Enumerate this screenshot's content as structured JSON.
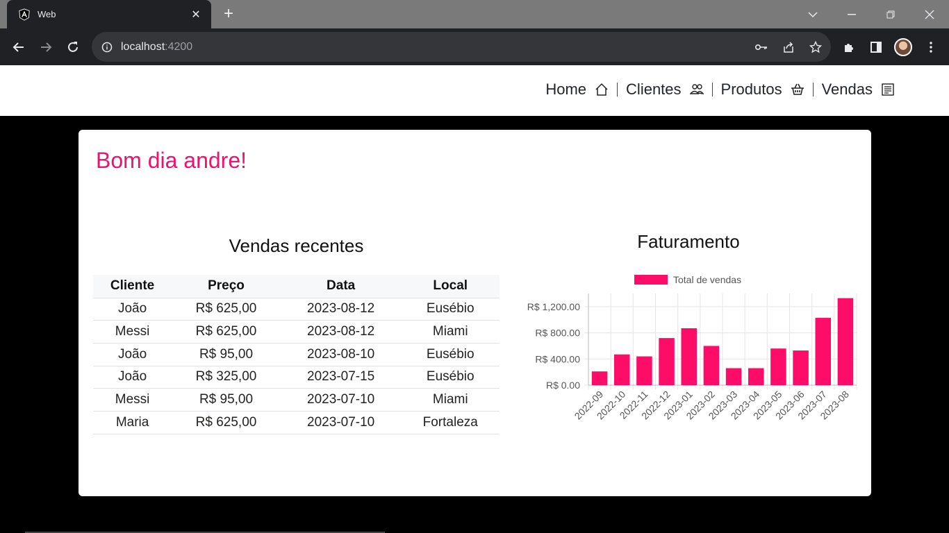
{
  "browser": {
    "tab_title": "Web",
    "url_host": "localhost",
    "url_port": ":4200"
  },
  "nav": {
    "home": "Home",
    "clientes": "Clientes",
    "produtos": "Produtos",
    "vendas": "Vendas"
  },
  "greeting": "Bom dia andre!",
  "recent": {
    "title": "Vendas recentes",
    "columns": [
      "Cliente",
      "Preço",
      "Data",
      "Local"
    ],
    "rows": [
      [
        "João",
        "R$ 625,00",
        "2023-08-12",
        "Eusébio"
      ],
      [
        "Messi",
        "R$ 625,00",
        "2023-08-12",
        "Miami"
      ],
      [
        "João",
        "R$ 95,00",
        "2023-08-10",
        "Eusébio"
      ],
      [
        "João",
        "R$ 325,00",
        "2023-07-15",
        "Eusébio"
      ],
      [
        "Messi",
        "R$ 95,00",
        "2023-07-10",
        "Miami"
      ],
      [
        "Maria",
        "R$ 625,00",
        "2023-07-10",
        "Fortaleza"
      ]
    ]
  },
  "chart_data": {
    "type": "bar",
    "title": "Faturamento",
    "legend": "Total de vendas",
    "color": "#fd0d68",
    "categories": [
      "2022-09",
      "2022-10",
      "2022-11",
      "2022-12",
      "2023-01",
      "2023-02",
      "2023-03",
      "2023-04",
      "2023-05",
      "2023-06",
      "2023-07",
      "2023-08"
    ],
    "values": [
      210,
      470,
      440,
      720,
      870,
      600,
      260,
      260,
      560,
      530,
      1030,
      1330
    ],
    "yticks": [
      "R$ 0.00",
      "R$ 400.00",
      "R$ 800.00",
      "R$ 1,200.00"
    ],
    "ylim": [
      0,
      1400
    ]
  }
}
